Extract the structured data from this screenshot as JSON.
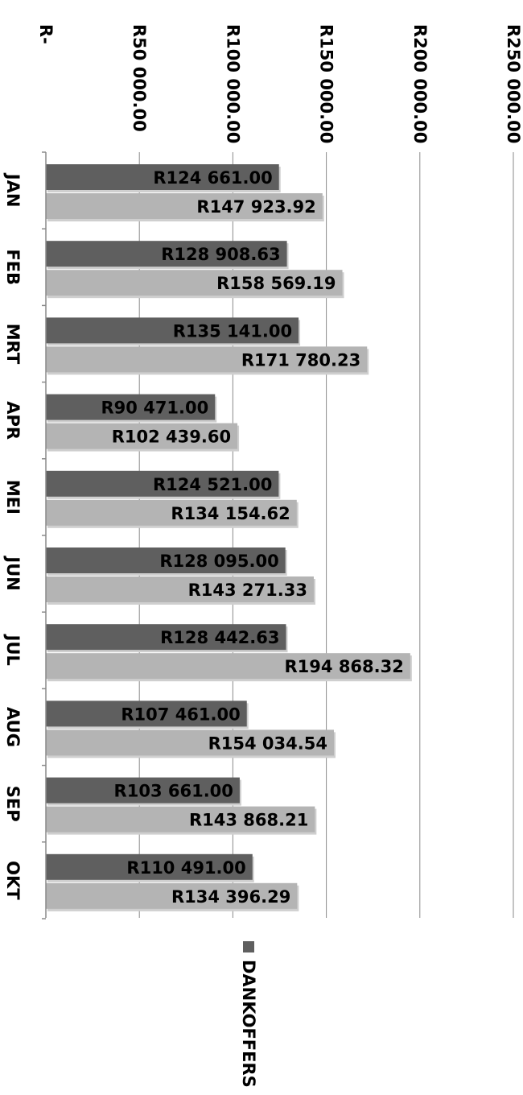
{
  "chart_data": {
    "type": "bar",
    "orientation": "horizontal",
    "categories": [
      "JAN",
      "FEB",
      "MRT",
      "APR",
      "MEI",
      "JUN",
      "JUL",
      "AUG",
      "SEP",
      "OKT"
    ],
    "series": [
      {
        "name": "DANKOFFERS",
        "color": "#5f5f5f",
        "values": [
          124661.0,
          128908.63,
          135141.0,
          90471.0,
          124521.0,
          128095.0,
          128442.63,
          107461.0,
          103661.0,
          110491.0
        ],
        "labels": [
          "R124 661.00",
          "R128 908.63",
          "R135 141.00",
          "R90 471.00",
          "R124 521.00",
          "R128 095.00",
          "R128 442.63",
          "R107 461.00",
          "R103 661.00",
          "R110 491.00"
        ]
      },
      {
        "name": "",
        "color": "#b4b4b4",
        "values": [
          147923.92,
          158569.19,
          171780.23,
          102439.6,
          134154.62,
          143271.33,
          194868.32,
          154034.54,
          143868.21,
          134396.29
        ],
        "labels": [
          "R147 923.92",
          "R158 569.19",
          "R171 780.23",
          "R102 439.60",
          "R134 154.62",
          "R143 271.33",
          "R194 868.32",
          "R154 034.54",
          "R143 868.21",
          "R134 396.29"
        ]
      }
    ],
    "value_axis": {
      "range": [
        0,
        250000
      ],
      "ticks": [
        0,
        50000,
        100000,
        150000,
        200000,
        250000
      ],
      "tick_labels": [
        "R-",
        "R50 000.00",
        "R100 000.00",
        "R150 000.00",
        "R200 000.00",
        "R250 000.00"
      ]
    },
    "title": "",
    "xlabel": "",
    "ylabel": "",
    "grid": true,
    "legend": {
      "placement": "bottom",
      "entries": [
        {
          "label": "DANKOFFERS",
          "color": "#5f5f5f"
        }
      ]
    },
    "rotation": "image rotated 90 degrees clockwise"
  }
}
